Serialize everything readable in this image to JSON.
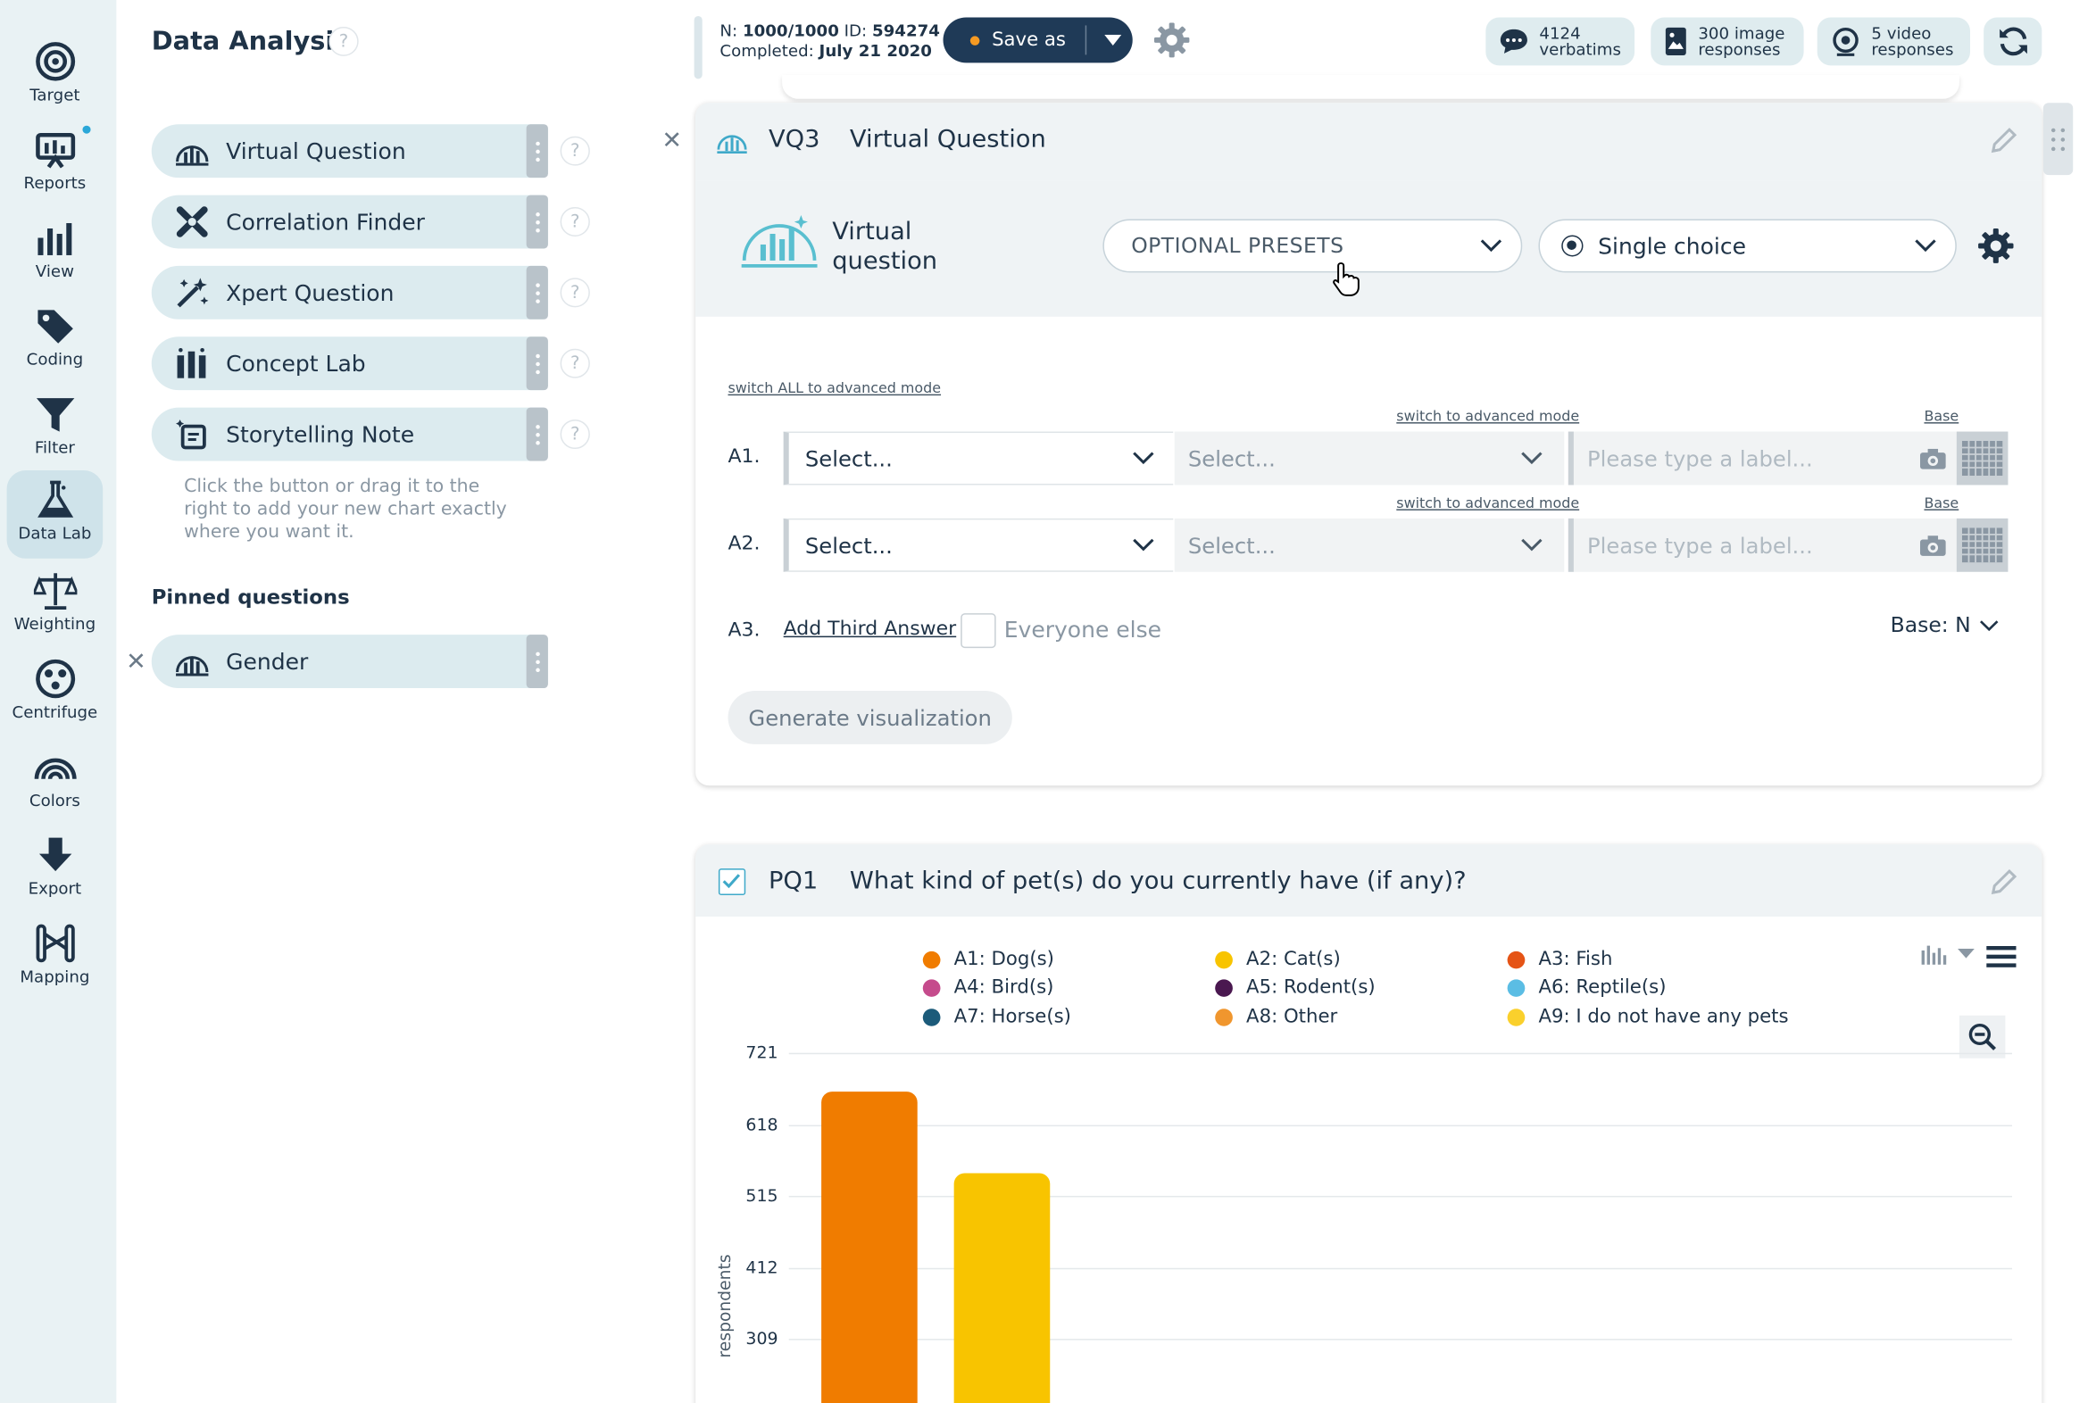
{
  "rail": {
    "items": [
      {
        "label": "Target",
        "icon": "target-icon"
      },
      {
        "label": "Reports",
        "icon": "reports-icon"
      },
      {
        "label": "View",
        "icon": "bar-chart-icon"
      },
      {
        "label": "Coding",
        "icon": "tag-icon"
      },
      {
        "label": "Filter",
        "icon": "filter-icon"
      },
      {
        "label": "Data Lab",
        "icon": "flask-icon"
      },
      {
        "label": "Weighting",
        "icon": "scales-icon"
      },
      {
        "label": "Centrifuge",
        "icon": "centrifuge-icon"
      },
      {
        "label": "Colors",
        "icon": "rainbow-icon"
      },
      {
        "label": "Export",
        "icon": "download-arrow-icon"
      },
      {
        "label": "Mapping",
        "icon": "mapping-icon"
      }
    ]
  },
  "panel": {
    "title": "Data Analysis",
    "help": "?",
    "tools": [
      {
        "label": "Virtual Question"
      },
      {
        "label": "Correlation Finder"
      },
      {
        "label": "Xpert Question"
      },
      {
        "label": "Concept Lab"
      },
      {
        "label": "Storytelling Note"
      }
    ],
    "hint": "Click the button or drag it to the right to add your new chart exactly where you want it.",
    "pinned_title": "Pinned questions",
    "pinned": [
      {
        "label": "Gender"
      }
    ]
  },
  "topbar": {
    "n_label": "N:",
    "n_value": "1000/1000",
    "id_label": "ID:",
    "id_value": "594274",
    "completed_label": "Completed:",
    "completed_value": "July 21 2020",
    "save_as": "Save as",
    "pills": [
      {
        "line1": "4124",
        "line2": "verbatims"
      },
      {
        "line1": "300 image",
        "line2": "responses"
      },
      {
        "line1": "5 video",
        "line2": "responses"
      }
    ]
  },
  "vq": {
    "code": "VQ3",
    "title": "Virtual Question",
    "name_line1": "Virtual",
    "name_line2": "question",
    "presets": "OPTIONAL PRESETS",
    "choice": "Single choice",
    "switch_all": "switch ALL to advanced mode",
    "switch_one": "switch to advanced mode",
    "base_link": "Base",
    "rows": [
      {
        "label": "A1.",
        "sel1": "Select...",
        "sel2": "Select...",
        "placeholder": "Please type a label..."
      },
      {
        "label": "A2.",
        "sel1": "Select...",
        "sel2": "Select...",
        "placeholder": "Please type a label..."
      }
    ],
    "a3_label": "A3.",
    "add_third": "Add Third Answer",
    "everyone_else": "Everyone else",
    "base_n": "Base: N",
    "generate": "Generate visualization"
  },
  "pq": {
    "code": "PQ1",
    "title": "What kind of pet(s) do you currently have (if any)?",
    "legend": [
      {
        "label": "A1: Dog(s)",
        "color": "#f07c00"
      },
      {
        "label": "A2: Cat(s)",
        "color": "#f8c400"
      },
      {
        "label": "A3: Fish",
        "color": "#e55416"
      },
      {
        "label": "A4: Bird(s)",
        "color": "#c54b8c"
      },
      {
        "label": "A5: Rodent(s)",
        "color": "#4a1850"
      },
      {
        "label": "A6: Reptile(s)",
        "color": "#5bbde4"
      },
      {
        "label": "A7: Horse(s)",
        "color": "#1c5b7a"
      },
      {
        "label": "A8: Other",
        "color": "#f0962e"
      },
      {
        "label": "A9: I do not have any pets",
        "color": "#fad02c"
      }
    ],
    "ylabel": "respondents"
  },
  "chart_data": {
    "type": "bar",
    "ylabel": "respondents",
    "yticks": [
      721,
      618,
      515,
      412,
      309
    ],
    "categories": [
      "A1: Dog(s)",
      "A2: Cat(s)"
    ],
    "values": [
      665,
      549
    ],
    "colors": [
      "#f07c00",
      "#f8c400"
    ]
  }
}
